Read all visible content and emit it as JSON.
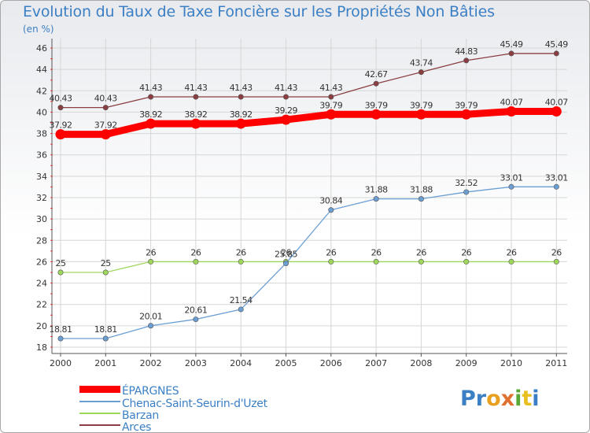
{
  "chart_data": {
    "type": "line",
    "title": "Evolution du Taux de Taxe Foncière sur les Propriétés Non Bâties",
    "unit_label": "(en %)",
    "x": [
      "2000",
      "2001",
      "2002",
      "2003",
      "2004",
      "2005",
      "2006",
      "2007",
      "2008",
      "2009",
      "2010",
      "2011"
    ],
    "ylim": [
      18,
      46
    ],
    "yticks": [
      18,
      20,
      22,
      24,
      26,
      28,
      30,
      32,
      34,
      36,
      38,
      40,
      42,
      44,
      46
    ],
    "grid": true,
    "series": [
      {
        "name": "ÉPARGNES",
        "color": "#ff0000",
        "values": [
          37.92,
          37.92,
          38.92,
          38.92,
          38.92,
          39.29,
          39.79,
          39.79,
          39.79,
          39.79,
          40.07,
          40.07
        ],
        "labels": [
          "37.92",
          "37.92",
          "38.92",
          "38.92",
          "38.92",
          "39.29",
          "39.79",
          "39.79",
          "39.79",
          "39.79",
          "40.07",
          "40.07"
        ]
      },
      {
        "name": "Chenac-Saint-Seurin-d'Uzet",
        "color": "#6b9fd4",
        "values": [
          18.81,
          18.81,
          20.01,
          20.61,
          21.54,
          25.85,
          30.84,
          31.88,
          31.88,
          32.52,
          33.01,
          33.01
        ],
        "labels": [
          "18.81",
          "18.81",
          "20.01",
          "20.61",
          "21.54",
          "25.85",
          "30.84",
          "31.88",
          "31.88",
          "32.52",
          "33.01",
          "33.01"
        ]
      },
      {
        "name": "Barzan",
        "color": "#9fd65c",
        "values": [
          25,
          25,
          26,
          26,
          26,
          26,
          26,
          26,
          26,
          26,
          26,
          26
        ],
        "labels": [
          "25",
          "25",
          "26",
          "26",
          "26",
          "26",
          "26",
          "26",
          "26",
          "26",
          "26",
          "26"
        ]
      },
      {
        "name": "Arces",
        "color": "#8a3e42",
        "values": [
          40.43,
          40.43,
          41.43,
          41.43,
          41.43,
          41.43,
          41.43,
          42.67,
          43.74,
          44.83,
          45.49,
          45.49
        ],
        "labels": [
          "40.43",
          "40.43",
          "41.43",
          "41.43",
          "41.43",
          "41.43",
          "41.43",
          "42.67",
          "43.74",
          "44.83",
          "45.49",
          "45.49"
        ]
      }
    ]
  },
  "branding": {
    "logo_text": "Proxiti"
  }
}
